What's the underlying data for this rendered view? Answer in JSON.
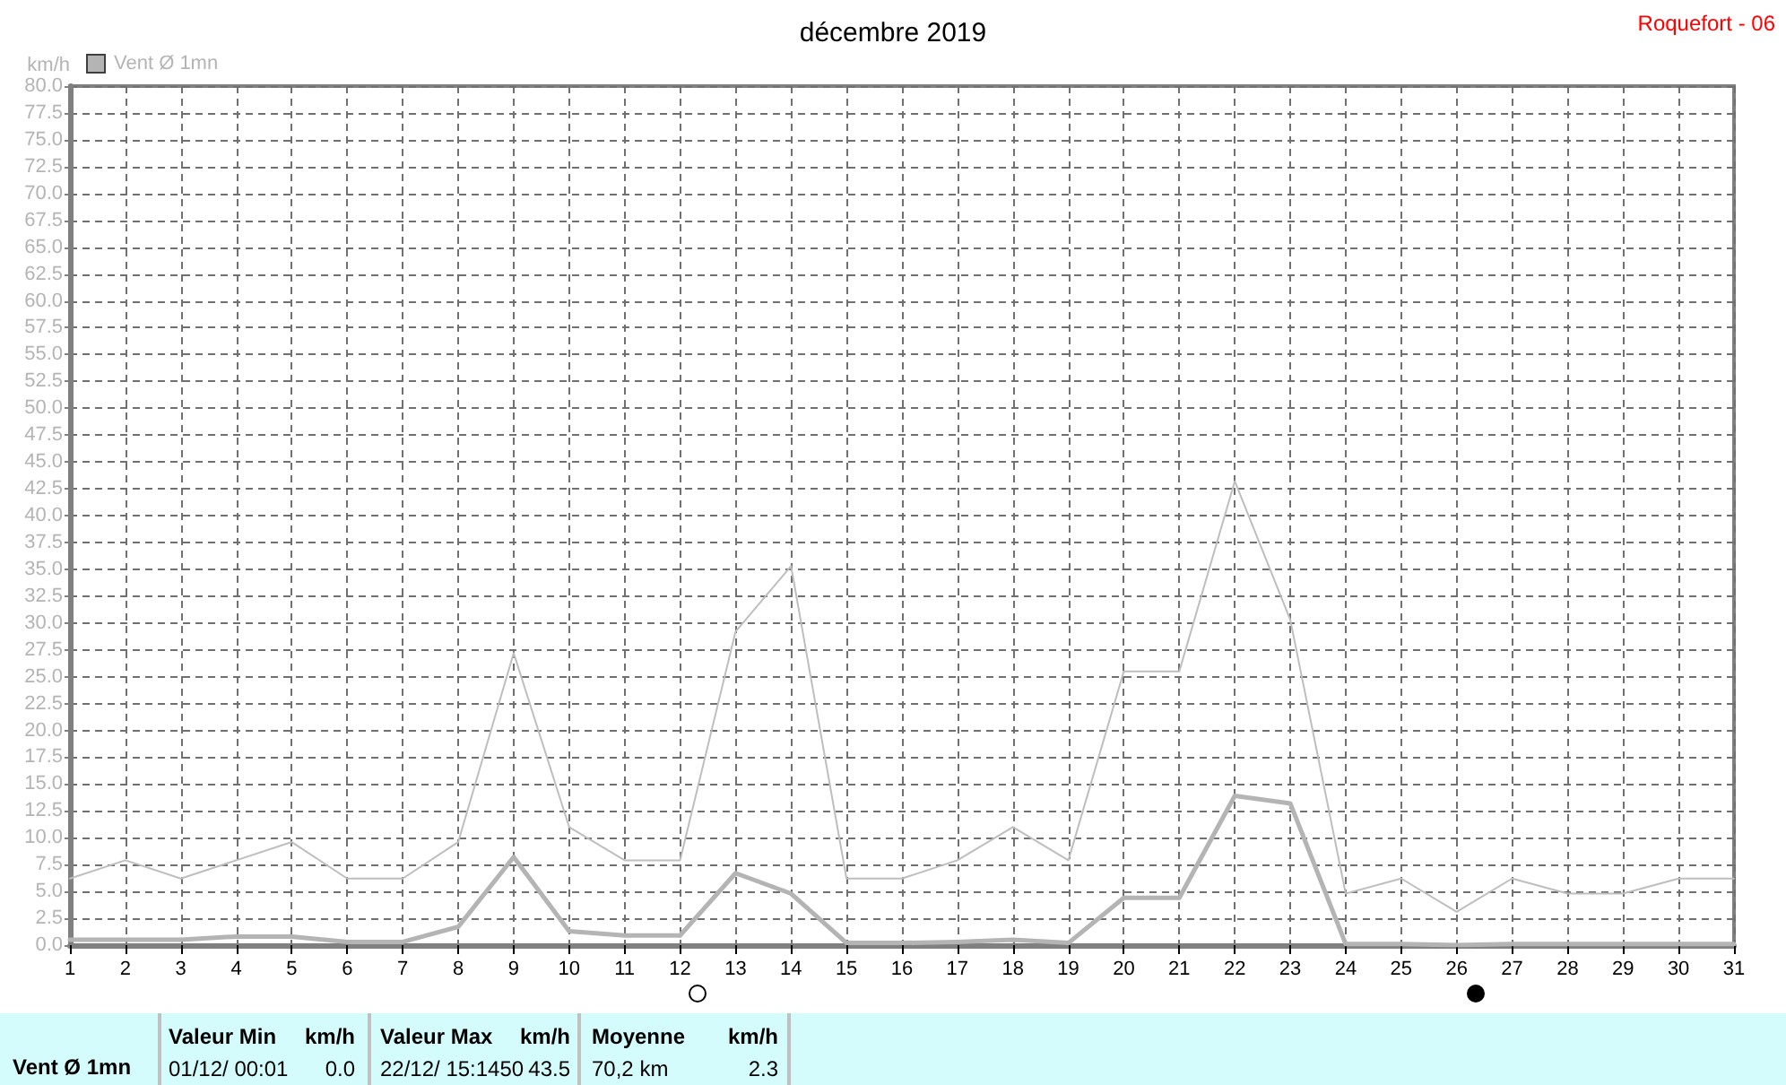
{
  "chart_data": {
    "type": "line",
    "title": "décembre 2019",
    "ylabel": "km/h",
    "x": [
      1,
      2,
      3,
      4,
      5,
      6,
      7,
      8,
      9,
      10,
      11,
      12,
      13,
      14,
      15,
      16,
      17,
      18,
      19,
      20,
      21,
      22,
      23,
      24,
      25,
      26,
      27,
      28,
      29,
      30,
      31
    ],
    "series": [
      {
        "color": "#bebebe",
        "values": [
          6.2,
          7.9,
          6.2,
          7.9,
          9.6,
          6.2,
          6.2,
          9.6,
          27.2,
          11.0,
          7.9,
          7.9,
          29.2,
          35.3,
          6.2,
          6.2,
          7.9,
          11.0,
          7.9,
          25.5,
          25.5,
          43.2,
          30.3,
          4.8,
          6.2,
          3.1,
          6.2,
          4.8,
          4.8,
          6.2,
          6.2
        ]
      },
      {
        "name": "Vent Ø 1mn",
        "color": "#b4b4b4",
        "values": [
          0.5,
          0.5,
          0.5,
          0.8,
          0.8,
          0.3,
          0.3,
          1.7,
          8.2,
          1.3,
          0.9,
          0.9,
          6.7,
          4.8,
          0.2,
          0.2,
          0.3,
          0.5,
          0.2,
          4.4,
          4.4,
          13.9,
          13.2,
          0.1,
          0.1,
          0.0,
          0.1,
          0.1,
          0.1,
          0.1,
          0.1
        ]
      }
    ],
    "xlim": [
      1,
      31
    ],
    "xticks": [
      1,
      2,
      3,
      4,
      5,
      6,
      7,
      8,
      9,
      10,
      11,
      12,
      13,
      14,
      15,
      16,
      17,
      18,
      19,
      20,
      21,
      22,
      23,
      24,
      25,
      26,
      27,
      28,
      29,
      30,
      31
    ],
    "ylim": [
      0,
      80
    ],
    "yticks": [
      {
        "value": 0,
        "label": "0.0"
      },
      {
        "value": 2.5,
        "label": "2.5"
      },
      {
        "value": 5,
        "label": "5.0"
      },
      {
        "value": 7.5,
        "label": "7.5"
      },
      {
        "value": 10,
        "label": "10.0"
      },
      {
        "value": 12.5,
        "label": "12.5"
      },
      {
        "value": 15,
        "label": "15.0"
      },
      {
        "value": 17.5,
        "label": "17.5"
      },
      {
        "value": 20,
        "label": "20.0"
      },
      {
        "value": 22.5,
        "label": "22.5"
      },
      {
        "value": 25,
        "label": "25.0"
      },
      {
        "value": 27.5,
        "label": "27.5"
      },
      {
        "value": 30,
        "label": "30.0"
      },
      {
        "value": 32.5,
        "label": "32.5"
      },
      {
        "value": 35,
        "label": "35.0"
      },
      {
        "value": 37.5,
        "label": "37.5"
      },
      {
        "value": 40,
        "label": "40.0"
      },
      {
        "value": 42.5,
        "label": "42.5"
      },
      {
        "value": 45,
        "label": "45.0"
      },
      {
        "value": 47.5,
        "label": "47.5"
      },
      {
        "value": 50,
        "label": "50.0"
      },
      {
        "value": 52.5,
        "label": "52.5"
      },
      {
        "value": 55,
        "label": "55.0"
      },
      {
        "value": 57.5,
        "label": "57.5"
      },
      {
        "value": 60,
        "label": "60.0"
      },
      {
        "value": 62.5,
        "label": "62.5"
      },
      {
        "value": 65,
        "label": "65.0"
      },
      {
        "value": 67.5,
        "label": "67.5"
      },
      {
        "value": 70,
        "label": "70.0"
      },
      {
        "value": 72.5,
        "label": "72.5"
      },
      {
        "value": 75,
        "label": "75.0"
      },
      {
        "value": 77.5,
        "label": "77.5"
      },
      {
        "value": 80,
        "label": "80.0"
      }
    ],
    "grid": true,
    "legend": "top left",
    "marker": "none",
    "line_style": "solid",
    "annotations": [
      "Roquefort - 06",
      "Vent Ø 1mn",
      "Valeur Min",
      "km/h",
      "01/12/ 00:01",
      "0.0",
      "Valeur Max",
      "km/h",
      "22/12/ 15:1450",
      "43.5",
      "Moyenne",
      "km/h",
      "70,2 km",
      "2.3"
    ]
  }
}
